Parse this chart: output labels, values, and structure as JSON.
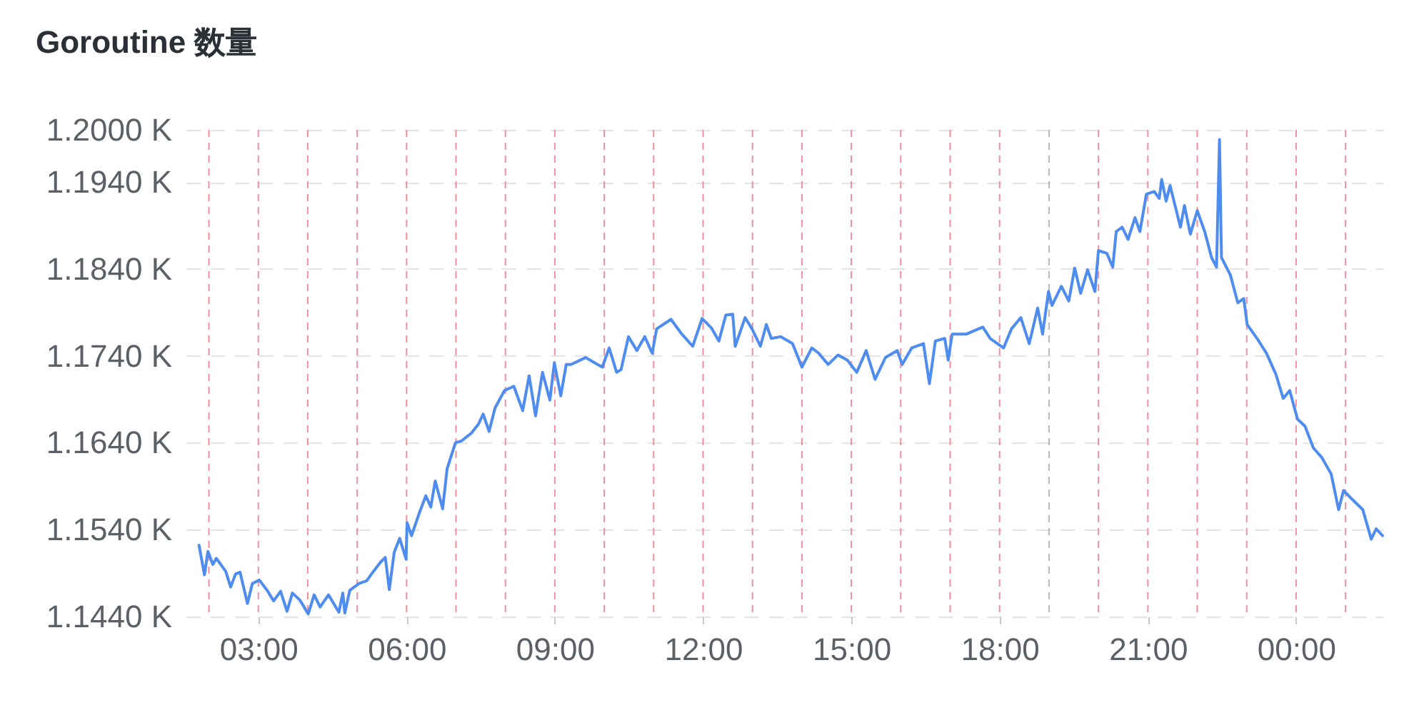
{
  "chart_data": {
    "type": "line",
    "title": "Goroutine 数量",
    "color": "#4e8cf0",
    "x": [
      1.8,
      1.91,
      1.98,
      2.08,
      2.15,
      2.34,
      2.44,
      2.54,
      2.63,
      2.78,
      2.88,
      3.02,
      3.18,
      3.31,
      3.45,
      3.58,
      3.69,
      3.84,
      4.01,
      4.13,
      4.25,
      4.42,
      4.63,
      4.71,
      4.75,
      4.85,
      5.04,
      5.19,
      5.33,
      5.48,
      5.57,
      5.65,
      5.75,
      5.86,
      5.99,
      6.01,
      6.1,
      6.25,
      6.39,
      6.49,
      6.58,
      6.73,
      6.82,
      6.99,
      7.11,
      7.31,
      7.45,
      7.55,
      7.67,
      7.79,
      7.98,
      8.17,
      8.35,
      8.48,
      8.61,
      8.75,
      8.9,
      8.99,
      9.12,
      9.23,
      9.33,
      9.62,
      9.96,
      10.1,
      10.25,
      10.34,
      10.49,
      10.66,
      10.82,
      10.97,
      11.06,
      11.35,
      11.57,
      11.79,
      11.98,
      12.17,
      12.32,
      12.46,
      12.6,
      12.65,
      12.85,
      12.99,
      13.16,
      13.28,
      13.38,
      13.57,
      13.81,
      14.0,
      14.2,
      14.34,
      14.53,
      14.73,
      14.92,
      15.11,
      15.3,
      15.48,
      15.69,
      15.93,
      16.03,
      16.22,
      16.46,
      16.58,
      16.7,
      16.89,
      16.96,
      17.04,
      17.33,
      17.66,
      17.81,
      18.08,
      18.24,
      18.43,
      18.6,
      18.77,
      18.87,
      18.99,
      19.06,
      19.25,
      19.4,
      19.52,
      19.64,
      19.78,
      19.93,
      20.0,
      20.17,
      20.29,
      20.36,
      20.48,
      20.6,
      20.74,
      20.84,
      20.97,
      21.13,
      21.23,
      21.28,
      21.37,
      21.45,
      21.66,
      21.74,
      21.86,
      22.0,
      22.15,
      22.29,
      22.39,
      22.45,
      22.49,
      22.67,
      22.82,
      22.94,
      23.01,
      23.21,
      23.4,
      23.59,
      23.74,
      23.87,
      24.03,
      24.18,
      24.35,
      24.52,
      24.71,
      24.86,
      24.96,
      25.15,
      25.35,
      25.52,
      25.62,
      25.75
    ],
    "values": [
      1.1522,
      1.1488,
      1.1515,
      1.15,
      1.1507,
      1.1492,
      1.1474,
      1.1489,
      1.1491,
      1.1455,
      1.1478,
      1.1482,
      1.147,
      1.1458,
      1.1469,
      1.1446,
      1.1467,
      1.1459,
      1.1443,
      1.1465,
      1.1451,
      1.1465,
      1.1445,
      1.1467,
      1.1444,
      1.147,
      1.1478,
      1.1481,
      1.1492,
      1.1503,
      1.1508,
      1.1471,
      1.1514,
      1.153,
      1.1506,
      1.1548,
      1.1533,
      1.1558,
      1.1579,
      1.1566,
      1.1596,
      1.1564,
      1.161,
      1.164,
      1.1642,
      1.1651,
      1.1661,
      1.1673,
      1.1653,
      1.168,
      1.17,
      1.1705,
      1.1677,
      1.1717,
      1.1671,
      1.1721,
      1.1689,
      1.1732,
      1.1694,
      1.173,
      1.173,
      1.1738,
      1.1727,
      1.1749,
      1.1721,
      1.1724,
      1.1762,
      1.1746,
      1.1762,
      1.1743,
      1.1771,
      1.1782,
      1.1765,
      1.1751,
      1.1783,
      1.1772,
      1.1757,
      1.1787,
      1.1788,
      1.1751,
      1.1784,
      1.1771,
      1.1751,
      1.1776,
      1.176,
      1.1762,
      1.1754,
      1.1727,
      1.1749,
      1.1743,
      1.173,
      1.1741,
      1.1735,
      1.1721,
      1.1746,
      1.1713,
      1.1738,
      1.1746,
      1.173,
      1.1749,
      1.1754,
      1.1708,
      1.1757,
      1.176,
      1.1735,
      1.1765,
      1.1765,
      1.1773,
      1.176,
      1.1749,
      1.1771,
      1.1784,
      1.1754,
      1.1795,
      1.1765,
      1.1814,
      1.1798,
      1.182,
      1.1803,
      1.1841,
      1.1812,
      1.1839,
      1.1814,
      1.1861,
      1.1858,
      1.1842,
      1.1883,
      1.1888,
      1.1874,
      1.1899,
      1.1883,
      1.1926,
      1.1929,
      1.1921,
      1.1943,
      1.1918,
      1.1936,
      1.1888,
      1.1913,
      1.188,
      1.1907,
      1.1883,
      1.1853,
      1.1842,
      1.1989,
      1.1853,
      1.1833,
      1.1801,
      1.1806,
      1.1776,
      1.176,
      1.1743,
      1.1719,
      1.1691,
      1.17,
      1.1667,
      1.1659,
      1.1634,
      1.1623,
      1.1604,
      1.1563,
      1.1585,
      1.1574,
      1.1563,
      1.1529,
      1.1541,
      1.1533
    ],
    "xlim": [
      1.53,
      25.75
    ],
    "xticks": [
      {
        "value": 3,
        "label": "03:00"
      },
      {
        "value": 6,
        "label": "06:00"
      },
      {
        "value": 9,
        "label": "09:00"
      },
      {
        "value": 12,
        "label": "12:00"
      },
      {
        "value": 15,
        "label": "15:00"
      },
      {
        "value": 18,
        "label": "18:00"
      },
      {
        "value": 21,
        "label": "21:00"
      },
      {
        "value": 24,
        "label": "00:00"
      }
    ],
    "ylim": [
      1.144,
      1.2
    ],
    "yticks": [
      {
        "value": 1.144,
        "label": "1.1440 K"
      },
      {
        "value": 1.154,
        "label": "1.1540 K"
      },
      {
        "value": 1.164,
        "label": "1.1640 K"
      },
      {
        "value": 1.174,
        "label": "1.1740 K"
      },
      {
        "value": 1.184,
        "label": "1.1840 K"
      },
      {
        "value": 1.194,
        "label": "1.1940 K"
      },
      {
        "value": 1.2,
        "label": "1.2000 K"
      }
    ],
    "grid": "y",
    "ref_lines": [
      {
        "axis": "x",
        "value": 2,
        "color": "#ef8f9f",
        "line_style": "dashed"
      },
      {
        "axis": "x",
        "value": 3,
        "color": "#ef8f9f",
        "line_style": "dashed"
      },
      {
        "axis": "x",
        "value": 4,
        "color": "#ef8f9f",
        "line_style": "dashed"
      },
      {
        "axis": "x",
        "value": 5,
        "color": "#ef8f9f",
        "line_style": "dashed"
      },
      {
        "axis": "x",
        "value": 6,
        "color": "#ef8f9f",
        "line_style": "dashed"
      },
      {
        "axis": "x",
        "value": 7,
        "color": "#ef8f9f",
        "line_style": "dashed"
      },
      {
        "axis": "x",
        "value": 8,
        "color": "#ef8f9f",
        "line_style": "dashed"
      },
      {
        "axis": "x",
        "value": 9,
        "color": "#ef8f9f",
        "line_style": "dashed"
      },
      {
        "axis": "x",
        "value": 10,
        "color": "#ef8f9f",
        "line_style": "dashed"
      },
      {
        "axis": "x",
        "value": 11,
        "color": "#ef8f9f",
        "line_style": "dashed"
      },
      {
        "axis": "x",
        "value": 12,
        "color": "#ef8f9f",
        "line_style": "dashed"
      },
      {
        "axis": "x",
        "value": 13,
        "color": "#ef8f9f",
        "line_style": "dashed"
      },
      {
        "axis": "x",
        "value": 14,
        "color": "#ef8f9f",
        "line_style": "dashed"
      },
      {
        "axis": "x",
        "value": 15,
        "color": "#ef8f9f",
        "line_style": "dashed"
      },
      {
        "axis": "x",
        "value": 16,
        "color": "#ef8f9f",
        "line_style": "dashed"
      },
      {
        "axis": "x",
        "value": 17,
        "color": "#ef8f9f",
        "line_style": "dashed"
      },
      {
        "axis": "x",
        "value": 18,
        "color": "#ef8f9f",
        "line_style": "dashed"
      },
      {
        "axis": "x",
        "value": 19,
        "color": "#b8b8b8",
        "line_style": "dashed"
      },
      {
        "axis": "x",
        "value": 20,
        "color": "#ef8f9f",
        "line_style": "dashed"
      },
      {
        "axis": "x",
        "value": 21,
        "color": "#ef8f9f",
        "line_style": "dashed"
      },
      {
        "axis": "x",
        "value": 22,
        "color": "#ef8f9f",
        "line_style": "dashed"
      },
      {
        "axis": "x",
        "value": 23,
        "color": "#ef8f9f",
        "line_style": "dashed"
      },
      {
        "axis": "x",
        "value": 24,
        "color": "#ef8f9f",
        "line_style": "dashed"
      },
      {
        "axis": "x",
        "value": 25,
        "color": "#ef8f9f",
        "line_style": "dashed"
      }
    ]
  }
}
